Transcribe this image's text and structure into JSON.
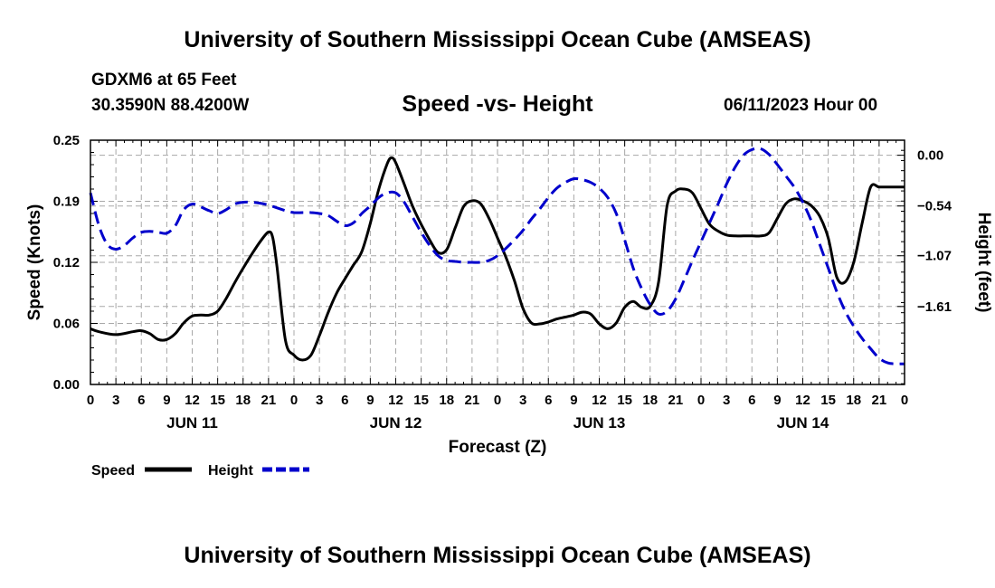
{
  "header": {
    "title": "University of Southern Mississippi Ocean Cube (AMSEAS)",
    "station": "GDXM6 at 65 Feet",
    "coords": "30.3590N  88.4200W",
    "subtitle": "Speed -vs- Height",
    "datetime": "06/11/2023 Hour 00"
  },
  "footer": {
    "title": "University of Southern Mississippi Ocean Cube (AMSEAS)"
  },
  "chart_data": {
    "type": "line",
    "xlabel": "Forecast (Z)",
    "ylabel": "Speed (Knots)",
    "y2label": "Height (feet)",
    "xlim": [
      0,
      96
    ],
    "ylim": [
      0,
      0.25
    ],
    "y2lim": [
      -2.44,
      0.16
    ],
    "yticks": [
      "0.00",
      "0.06",
      "0.12",
      "0.19",
      "0.25"
    ],
    "yticks_values": [
      0.0,
      0.0625,
      0.125,
      0.1875,
      0.25
    ],
    "y2ticks": [
      "0.00",
      "−0.54",
      "−1.07",
      "−1.61"
    ],
    "y2ticks_values": [
      0.0,
      -0.54,
      -1.07,
      -1.61
    ],
    "xtick_hours": [
      0,
      3,
      6,
      9,
      12,
      15,
      18,
      21,
      24,
      27,
      30,
      33,
      36,
      39,
      42,
      45,
      48,
      51,
      54,
      57,
      60,
      63,
      66,
      69,
      72,
      75,
      78,
      81,
      84,
      87,
      90,
      93,
      96
    ],
    "xtick_labels": [
      "0",
      "3",
      "6",
      "9",
      "12",
      "15",
      "18",
      "21",
      "0",
      "3",
      "6",
      "9",
      "12",
      "15",
      "18",
      "21",
      "0",
      "3",
      "6",
      "9",
      "12",
      "15",
      "18",
      "21",
      "0",
      "3",
      "6",
      "9",
      "12",
      "15",
      "18",
      "21",
      "0"
    ],
    "day_labels": [
      {
        "label": "JUN 11",
        "hour": 12
      },
      {
        "label": "JUN 12",
        "hour": 36
      },
      {
        "label": "JUN 13",
        "hour": 60
      },
      {
        "label": "JUN 14",
        "hour": 84
      }
    ],
    "legend": [
      {
        "name": "Speed",
        "color": "#000000",
        "dash": "solid"
      },
      {
        "name": "Height",
        "color": "#0000cc",
        "dash": "dashed"
      }
    ],
    "series": [
      {
        "name": "Speed",
        "axis": "left",
        "color": "#000000",
        "x": [
          0,
          1,
          3,
          5,
          6,
          7,
          8,
          9,
          10,
          11,
          12,
          13,
          14,
          15,
          16,
          17,
          18,
          19,
          20,
          21,
          21.5,
          22,
          23,
          24,
          25,
          26,
          27,
          28,
          29,
          30,
          31,
          32,
          33,
          34,
          35,
          35.5,
          36,
          37,
          38,
          39,
          40,
          41,
          42,
          43,
          44,
          45,
          46,
          47,
          48,
          49,
          50,
          51,
          52,
          53,
          54,
          55,
          56,
          57,
          58,
          59,
          60,
          61,
          62,
          63,
          64,
          65,
          66,
          67,
          68,
          69,
          70,
          71,
          72,
          73,
          74,
          75,
          76,
          77,
          78,
          79,
          80,
          81,
          82,
          83,
          84,
          85,
          86,
          87,
          88,
          89,
          90,
          91,
          92,
          93,
          94,
          95,
          96
        ],
        "values": [
          0.057,
          0.054,
          0.051,
          0.054,
          0.055,
          0.052,
          0.046,
          0.046,
          0.052,
          0.063,
          0.07,
          0.071,
          0.071,
          0.075,
          0.088,
          0.104,
          0.119,
          0.133,
          0.146,
          0.156,
          0.15,
          0.12,
          0.045,
          0.03,
          0.025,
          0.03,
          0.05,
          0.073,
          0.093,
          0.108,
          0.122,
          0.136,
          0.165,
          0.2,
          0.226,
          0.232,
          0.227,
          0.205,
          0.182,
          0.164,
          0.148,
          0.135,
          0.138,
          0.16,
          0.182,
          0.188,
          0.185,
          0.17,
          0.15,
          0.13,
          0.106,
          0.078,
          0.063,
          0.062,
          0.064,
          0.067,
          0.069,
          0.071,
          0.074,
          0.072,
          0.062,
          0.057,
          0.063,
          0.079,
          0.085,
          0.079,
          0.08,
          0.105,
          0.183,
          0.198,
          0.2,
          0.196,
          0.18,
          0.164,
          0.157,
          0.153,
          0.152,
          0.152,
          0.152,
          0.152,
          0.155,
          0.17,
          0.185,
          0.19,
          0.188,
          0.183,
          0.172,
          0.15,
          0.11,
          0.105,
          0.125,
          0.165,
          0.202,
          0.202,
          0.202,
          0.202,
          0.202
        ]
      },
      {
        "name": "Height",
        "axis": "right",
        "color": "#0000cc",
        "x": [
          0,
          1,
          2,
          3,
          4,
          5,
          6,
          7,
          8,
          9,
          10,
          11,
          12,
          13,
          14,
          15,
          16,
          17,
          18,
          19,
          20,
          21,
          22,
          23,
          24,
          25,
          26,
          27,
          28,
          29,
          30,
          31,
          32,
          33,
          34,
          35,
          36,
          37,
          38,
          39,
          40,
          41,
          42,
          43,
          44,
          45,
          46,
          47,
          48,
          49,
          50,
          51,
          52,
          53,
          54,
          55,
          56,
          57,
          58,
          59,
          60,
          61,
          62,
          63,
          64,
          65,
          66,
          67,
          68,
          69,
          70,
          71,
          72,
          73,
          74,
          75,
          76,
          77,
          78,
          79,
          80,
          81,
          82,
          83,
          84,
          85,
          86,
          87,
          88,
          89,
          90,
          91,
          92,
          93,
          94,
          95,
          96
        ],
        "values": [
          -0.4,
          -0.75,
          -0.95,
          -1.0,
          -0.96,
          -0.88,
          -0.82,
          -0.81,
          -0.82,
          -0.83,
          -0.75,
          -0.58,
          -0.52,
          -0.55,
          -0.59,
          -0.62,
          -0.58,
          -0.52,
          -0.5,
          -0.5,
          -0.51,
          -0.53,
          -0.56,
          -0.59,
          -0.61,
          -0.61,
          -0.61,
          -0.62,
          -0.64,
          -0.7,
          -0.75,
          -0.72,
          -0.62,
          -0.54,
          -0.45,
          -0.4,
          -0.4,
          -0.5,
          -0.66,
          -0.82,
          -0.96,
          -1.07,
          -1.12,
          -1.13,
          -1.14,
          -1.14,
          -1.14,
          -1.12,
          -1.07,
          -0.99,
          -0.9,
          -0.8,
          -0.68,
          -0.57,
          -0.45,
          -0.35,
          -0.29,
          -0.25,
          -0.26,
          -0.29,
          -0.35,
          -0.45,
          -0.62,
          -0.9,
          -1.2,
          -1.42,
          -1.59,
          -1.69,
          -1.66,
          -1.53,
          -1.33,
          -1.12,
          -0.92,
          -0.72,
          -0.52,
          -0.31,
          -0.13,
          0.0,
          0.06,
          0.07,
          0.01,
          -0.1,
          -0.22,
          -0.34,
          -0.5,
          -0.7,
          -0.95,
          -1.2,
          -1.45,
          -1.66,
          -1.82,
          -1.95,
          -2.06,
          -2.16,
          -2.21,
          -2.22,
          -2.22
        ]
      }
    ]
  }
}
